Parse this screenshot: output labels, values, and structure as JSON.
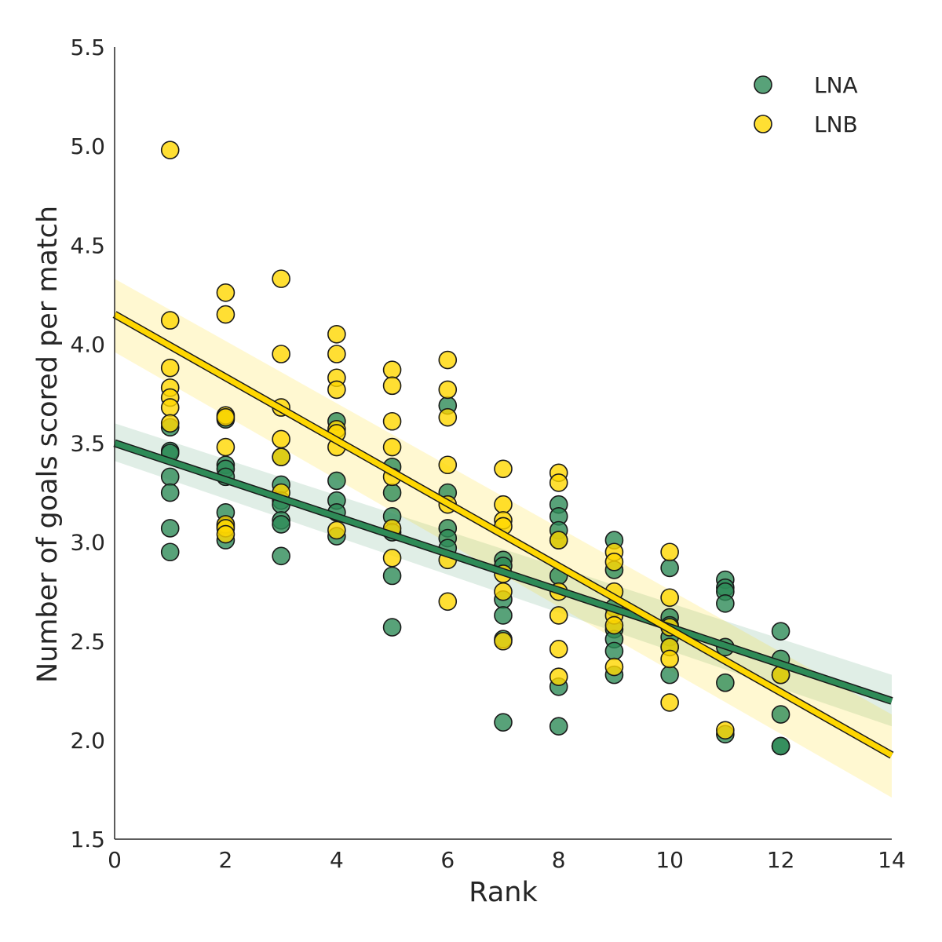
{
  "chart_data": {
    "type": "scatter",
    "title": "",
    "xlabel": "Rank",
    "ylabel": "Number of goals scored per match",
    "xlim": [
      0,
      14
    ],
    "ylim": [
      1.5,
      5.5
    ],
    "x_ticks": [
      "0",
      "2",
      "4",
      "6",
      "8",
      "10",
      "12",
      "14"
    ],
    "y_ticks": [
      "1.5",
      "2.0",
      "2.5",
      "3.0",
      "3.5",
      "4.0",
      "4.5",
      "5.0",
      "5.5"
    ],
    "grid": false,
    "legend_position": "top-right",
    "series": [
      {
        "name": "LNA",
        "color": "#2e8b57",
        "points": [
          [
            1,
            3.58
          ],
          [
            1,
            3.46
          ],
          [
            1,
            3.45
          ],
          [
            1,
            3.33
          ],
          [
            1,
            3.25
          ],
          [
            1,
            3.07
          ],
          [
            1,
            2.95
          ],
          [
            2,
            3.62
          ],
          [
            2,
            3.39
          ],
          [
            2,
            3.37
          ],
          [
            2,
            3.33
          ],
          [
            2,
            3.15
          ],
          [
            2,
            3.08
          ],
          [
            2,
            3.01
          ],
          [
            3,
            3.43
          ],
          [
            3,
            3.29
          ],
          [
            3,
            3.21
          ],
          [
            3,
            3.19
          ],
          [
            3,
            3.11
          ],
          [
            3,
            3.09
          ],
          [
            3,
            2.93
          ],
          [
            4,
            3.61
          ],
          [
            4,
            3.31
          ],
          [
            4,
            3.21
          ],
          [
            4,
            3.15
          ],
          [
            4,
            3.03
          ],
          [
            5,
            3.38
          ],
          [
            5,
            3.25
          ],
          [
            5,
            3.13
          ],
          [
            5,
            3.05
          ],
          [
            5,
            2.83
          ],
          [
            5,
            2.57
          ],
          [
            6,
            3.69
          ],
          [
            6,
            3.25
          ],
          [
            6,
            3.07
          ],
          [
            6,
            3.02
          ],
          [
            6,
            2.97
          ],
          [
            7,
            2.91
          ],
          [
            7,
            2.88
          ],
          [
            7,
            2.71
          ],
          [
            7,
            2.63
          ],
          [
            7,
            2.51
          ],
          [
            7,
            2.09
          ],
          [
            8,
            3.19
          ],
          [
            8,
            3.13
          ],
          [
            8,
            3.06
          ],
          [
            8,
            3.01
          ],
          [
            8,
            2.83
          ],
          [
            8,
            2.27
          ],
          [
            8,
            2.07
          ],
          [
            9,
            3.01
          ],
          [
            9,
            2.86
          ],
          [
            9,
            2.67
          ],
          [
            9,
            2.56
          ],
          [
            9,
            2.51
          ],
          [
            9,
            2.45
          ],
          [
            9,
            2.33
          ],
          [
            10,
            2.87
          ],
          [
            10,
            2.62
          ],
          [
            10,
            2.58
          ],
          [
            10,
            2.52
          ],
          [
            10,
            2.47
          ],
          [
            10,
            2.33
          ],
          [
            11,
            2.81
          ],
          [
            11,
            2.77
          ],
          [
            11,
            2.75
          ],
          [
            11,
            2.69
          ],
          [
            11,
            2.47
          ],
          [
            11,
            2.29
          ],
          [
            11,
            2.03
          ],
          [
            12,
            2.55
          ],
          [
            12,
            2.41
          ],
          [
            12,
            2.33
          ],
          [
            12,
            2.13
          ],
          [
            12,
            1.97
          ],
          [
            12,
            1.97
          ]
        ],
        "regression": {
          "intercept": 3.5,
          "slope": -0.093,
          "ci_start": [
            3.41,
            3.6
          ],
          "ci_end": [
            2.07,
            2.33
          ]
        }
      },
      {
        "name": "LNB",
        "color": "#ffd700",
        "points": [
          [
            1,
            4.98
          ],
          [
            1,
            4.12
          ],
          [
            1,
            3.88
          ],
          [
            1,
            3.78
          ],
          [
            1,
            3.73
          ],
          [
            1,
            3.68
          ],
          [
            1,
            3.6
          ],
          [
            2,
            4.26
          ],
          [
            2,
            4.15
          ],
          [
            2,
            3.64
          ],
          [
            2,
            3.63
          ],
          [
            2,
            3.48
          ],
          [
            2,
            3.09
          ],
          [
            2,
            3.07
          ],
          [
            2,
            3.04
          ],
          [
            3,
            4.33
          ],
          [
            3,
            3.95
          ],
          [
            3,
            3.68
          ],
          [
            3,
            3.52
          ],
          [
            3,
            3.43
          ],
          [
            3,
            3.25
          ],
          [
            4,
            4.05
          ],
          [
            4,
            3.95
          ],
          [
            4,
            3.83
          ],
          [
            4,
            3.77
          ],
          [
            4,
            3.57
          ],
          [
            4,
            3.55
          ],
          [
            4,
            3.48
          ],
          [
            4,
            3.06
          ],
          [
            5,
            3.87
          ],
          [
            5,
            3.79
          ],
          [
            5,
            3.61
          ],
          [
            5,
            3.48
          ],
          [
            5,
            3.33
          ],
          [
            5,
            3.07
          ],
          [
            5,
            2.92
          ],
          [
            6,
            3.92
          ],
          [
            6,
            3.77
          ],
          [
            6,
            3.63
          ],
          [
            6,
            3.39
          ],
          [
            6,
            3.19
          ],
          [
            6,
            2.91
          ],
          [
            6,
            2.7
          ],
          [
            7,
            3.37
          ],
          [
            7,
            3.19
          ],
          [
            7,
            3.11
          ],
          [
            7,
            3.08
          ],
          [
            7,
            2.84
          ],
          [
            7,
            2.75
          ],
          [
            7,
            2.5
          ],
          [
            8,
            3.35
          ],
          [
            8,
            3.3
          ],
          [
            8,
            3.01
          ],
          [
            8,
            2.75
          ],
          [
            8,
            2.63
          ],
          [
            8,
            2.46
          ],
          [
            8,
            2.32
          ],
          [
            9,
            2.95
          ],
          [
            9,
            2.9
          ],
          [
            9,
            2.75
          ],
          [
            9,
            2.63
          ],
          [
            9,
            2.58
          ],
          [
            9,
            2.37
          ],
          [
            10,
            2.95
          ],
          [
            10,
            2.72
          ],
          [
            10,
            2.57
          ],
          [
            10,
            2.47
          ],
          [
            10,
            2.41
          ],
          [
            10,
            2.19
          ],
          [
            11,
            2.05
          ],
          [
            12,
            2.33
          ]
        ],
        "regression": {
          "intercept": 4.15,
          "slope": -0.159,
          "ci_start": [
            3.96,
            4.33
          ],
          "ci_end": [
            1.71,
            2.13
          ]
        }
      }
    ]
  }
}
